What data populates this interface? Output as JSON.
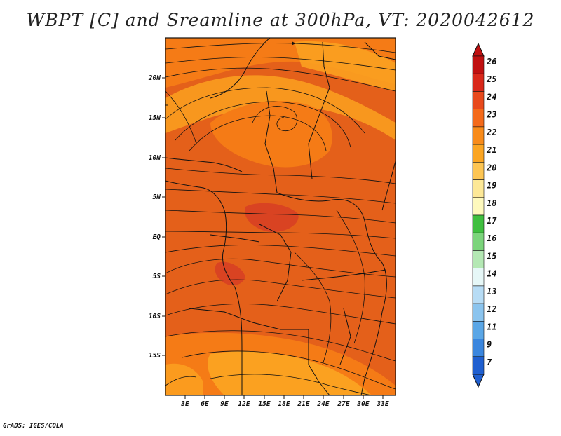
{
  "title": "WBPT [C] and Sreamline at 300hPa, VT: 2020042612",
  "credit": "GrADS: IGES/COLA",
  "map": {
    "lat_labels": [
      "20N",
      "15N",
      "10N",
      "5N",
      "EQ",
      "5S",
      "10S",
      "15S"
    ],
    "lon_labels": [
      "3E",
      "6E",
      "9E",
      "12E",
      "15E",
      "18E",
      "21E",
      "24E",
      "27E",
      "30E",
      "33E"
    ],
    "field_colors": {
      "c20": "#fba120",
      "c21": "#f57b16",
      "c22": "#e4601a",
      "c23": "#d63c24"
    }
  },
  "colorbar": {
    "labels": [
      "26",
      "25",
      "24",
      "23",
      "22",
      "21",
      "20",
      "19",
      "18",
      "17",
      "16",
      "15",
      "14",
      "13",
      "12",
      "11",
      "9",
      "7"
    ],
    "colors": [
      "#c01010",
      "#d9281a",
      "#e8491c",
      "#f46a1a",
      "#f88b1a",
      "#fba522",
      "#fdc553",
      "#fde897",
      "#fef9bd",
      "#3fbf3f",
      "#7bd47b",
      "#b4e8b4",
      "#e6f7f7",
      "#b7dcf5",
      "#8bc4ee",
      "#5aa6e6",
      "#3a86de",
      "#1f5fd0"
    ]
  }
}
